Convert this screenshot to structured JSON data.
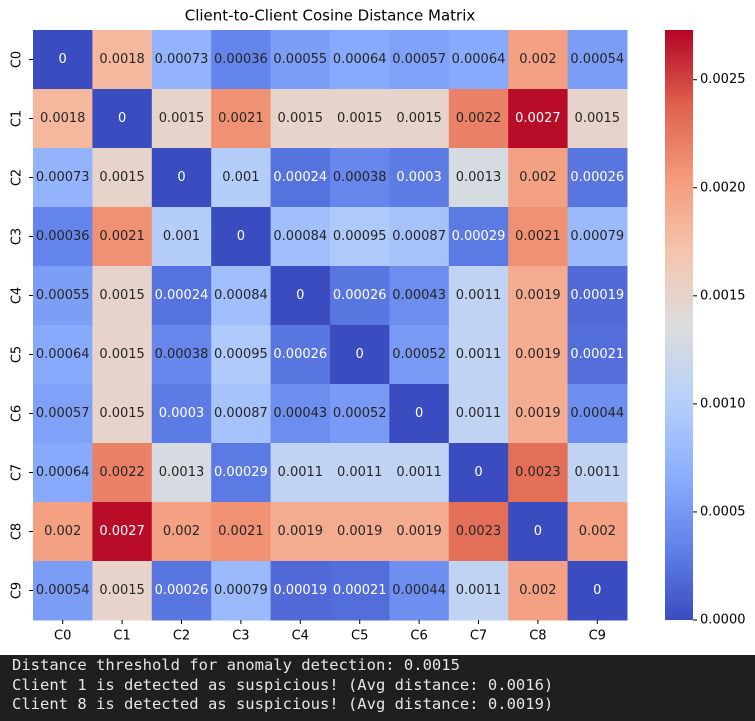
{
  "chart_data": {
    "type": "heatmap",
    "title": "Client-to-Client Cosine Distance Matrix",
    "x": [
      "C0",
      "C1",
      "C2",
      "C3",
      "C4",
      "C5",
      "C6",
      "C7",
      "C8",
      "C9"
    ],
    "y": [
      "C0",
      "C1",
      "C2",
      "C3",
      "C4",
      "C5",
      "C6",
      "C7",
      "C8",
      "C9"
    ],
    "values": [
      [
        0,
        0.0018,
        0.00073,
        0.00036,
        0.00055,
        0.00064,
        0.00057,
        0.00064,
        0.002,
        0.00054
      ],
      [
        0.0018,
        0,
        0.0015,
        0.0021,
        0.0015,
        0.0015,
        0.0015,
        0.0022,
        0.0027,
        0.0015
      ],
      [
        0.00073,
        0.0015,
        0,
        0.001,
        0.00024,
        0.00038,
        0.0003,
        0.0013,
        0.002,
        0.00026
      ],
      [
        0.00036,
        0.0021,
        0.001,
        0,
        0.00084,
        0.00095,
        0.00087,
        0.00029,
        0.0021,
        0.00079
      ],
      [
        0.00055,
        0.0015,
        0.00024,
        0.00084,
        0,
        0.00026,
        0.00043,
        0.0011,
        0.0019,
        0.00019
      ],
      [
        0.00064,
        0.0015,
        0.00038,
        0.00095,
        0.00026,
        0,
        0.00052,
        0.0011,
        0.0019,
        0.00021
      ],
      [
        0.00057,
        0.0015,
        0.0003,
        0.00087,
        0.00043,
        0.00052,
        0,
        0.0011,
        0.0019,
        0.00044
      ],
      [
        0.00064,
        0.0022,
        0.0013,
        0.00029,
        0.0011,
        0.0011,
        0.0011,
        0,
        0.0023,
        0.0011
      ],
      [
        0.002,
        0.0027,
        0.002,
        0.0021,
        0.0019,
        0.0019,
        0.0019,
        0.0023,
        0,
        0.002
      ],
      [
        0.00054,
        0.0015,
        0.00026,
        0.00079,
        0.00019,
        0.00021,
        0.00044,
        0.0011,
        0.002,
        0
      ]
    ],
    "zlim": [
      0,
      0.00273
    ],
    "zticks": [
      {
        "value": 0,
        "label": "0.0000"
      },
      {
        "value": 0.0005,
        "label": "0.0005"
      },
      {
        "value": 0.001,
        "label": "0.0010"
      },
      {
        "value": 0.0015,
        "label": "0.0015"
      },
      {
        "value": 0.002,
        "label": "0.0020"
      },
      {
        "value": 0.0025,
        "label": "0.0025"
      }
    ],
    "colormap": [
      "#3b4cc0",
      "#6282ea",
      "#8db0fe",
      "#b8d0f9",
      "#dddddd",
      "#f5c4ad",
      "#f49a7b",
      "#de604d",
      "#b40426"
    ]
  },
  "console": {
    "lines": [
      "Distance threshold for anomaly detection: 0.0015",
      "Client 1 is detected as suspicious! (Avg distance: 0.0016)",
      "Client 8 is detected as suspicious! (Avg distance: 0.0019)"
    ]
  }
}
